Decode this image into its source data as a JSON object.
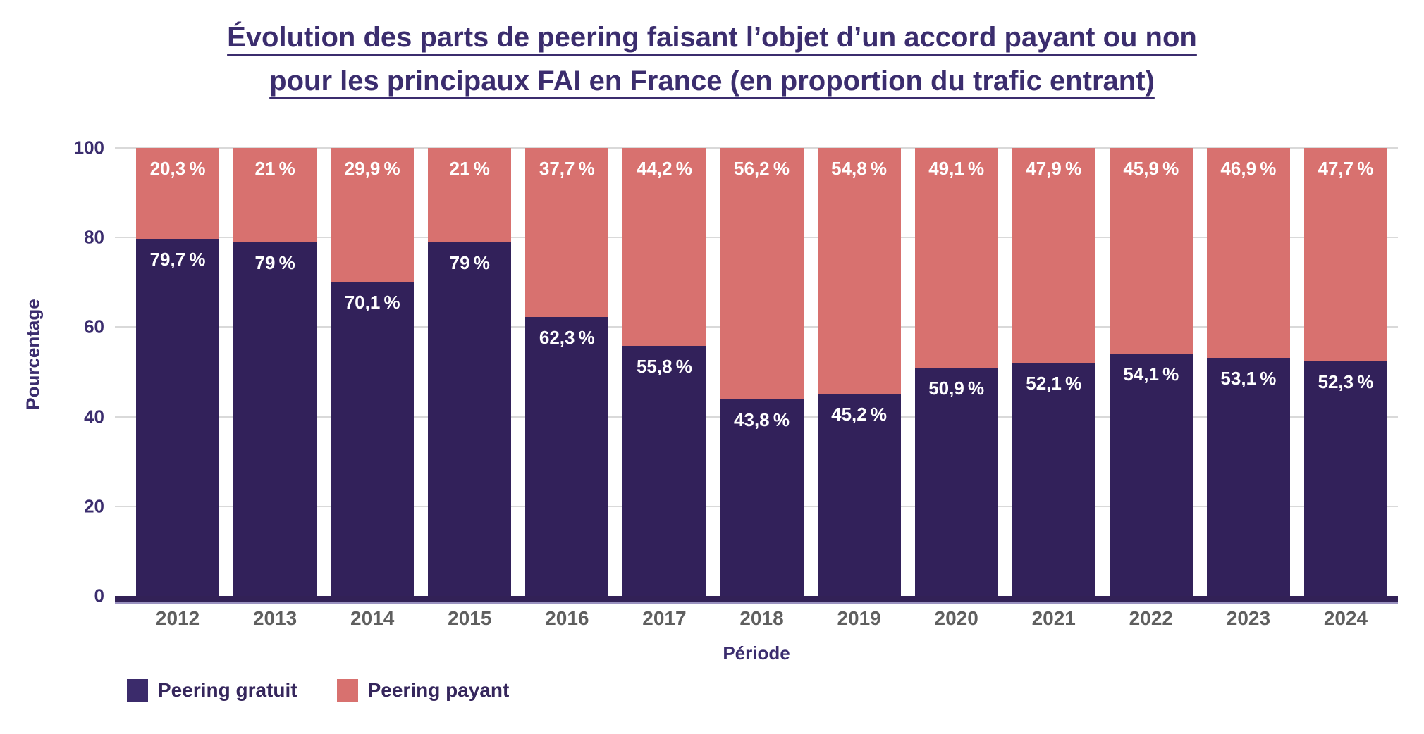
{
  "title": {
    "line1": "Évolution des parts de peering faisant l’objet d’un accord payant ou non",
    "line2": "pour les principaux FAI en France (en proportion du trafic entrant)",
    "color": "#3b2d6e"
  },
  "chart_data": {
    "type": "bar",
    "stacked": true,
    "title": "Évolution des parts de peering faisant l’objet d’un accord payant ou non pour les principaux FAI en France (en proportion du trafic entrant)",
    "xlabel": "Période",
    "ylabel": "Pourcentage",
    "ylim": [
      0,
      100
    ],
    "yticks": [
      0,
      20,
      40,
      60,
      80,
      100
    ],
    "grid": true,
    "legend_position": "bottom-left",
    "categories": [
      "2012",
      "2013",
      "2014",
      "2015",
      "2016",
      "2017",
      "2018",
      "2019",
      "2020",
      "2021",
      "2022",
      "2023",
      "2024"
    ],
    "series": [
      {
        "name": "Peering gratuit",
        "color": "#32215a",
        "values": [
          79.7,
          79,
          70.1,
          79,
          62.3,
          55.8,
          43.8,
          45.2,
          50.9,
          52.1,
          54.1,
          53.1,
          52.3
        ],
        "labels": [
          "79,7 %",
          "79 %",
          "70,1 %",
          "79 %",
          "62,3 %",
          "55,8 %",
          "43,8 %",
          "45,2 %",
          "50,9 %",
          "52,1 %",
          "54,1 %",
          "53,1 %",
          "52,3 %"
        ]
      },
      {
        "name": "Peering payant",
        "color": "#d8716f",
        "values": [
          20.3,
          21,
          29.9,
          21,
          37.7,
          44.2,
          56.2,
          54.8,
          49.1,
          47.9,
          45.9,
          46.9,
          47.7
        ],
        "labels": [
          "20,3 %",
          "21 %",
          "29,9 %",
          "21 %",
          "37,7 %",
          "44,2 %",
          "56,2 %",
          "54,8 %",
          "49,1 %",
          "47,9 %",
          "45,9 %",
          "46,9 %",
          "47,7 %"
        ]
      }
    ]
  },
  "legend": {
    "items": [
      {
        "label": "Peering gratuit",
        "color": "#3b2b6b"
      },
      {
        "label": "Peering payant",
        "color": "#d8716f"
      }
    ]
  },
  "colors": {
    "axis_line": "#322156",
    "axis_line_edge": "#9a92c0",
    "gridline": "#d9d9d9",
    "tick_label": "#3b2d6e",
    "year_label": "#5f5f5f",
    "bar_value_label": "#ffffff",
    "title": "#3b2d6e"
  }
}
